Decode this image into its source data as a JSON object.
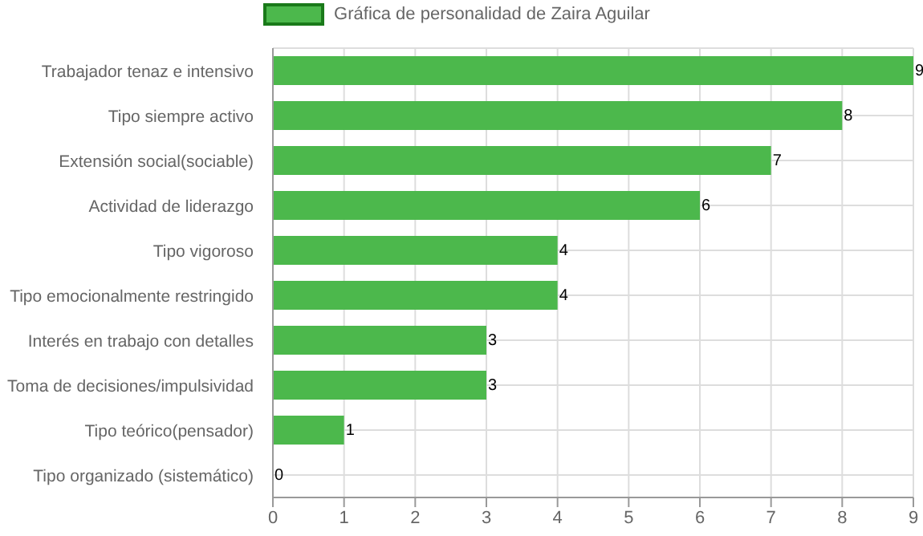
{
  "chart_data": {
    "type": "bar",
    "orientation": "horizontal",
    "categories": [
      "Trabajador tenaz e intensivo",
      "Tipo siempre activo",
      "Extensión social(sociable)",
      "Actividad de liderazgo",
      "Tipo vigoroso",
      "Tipo emocionalmente restringido",
      "Interés en trabajo con detalles",
      "Toma de decisiones/impulsividad",
      "Tipo teórico(pensador)",
      "Tipo organizado (sistemático)"
    ],
    "series": [
      {
        "name": "Gráfica de personalidad de Zaira Aguilar",
        "color": "#4cb84c",
        "values": [
          9,
          8,
          7,
          6,
          4,
          4,
          3,
          3,
          1,
          0
        ]
      }
    ],
    "xlim": [
      0,
      9
    ],
    "xticks": [
      0,
      1,
      2,
      3,
      4,
      5,
      6,
      7,
      8,
      9
    ],
    "grid": true,
    "legend": "top",
    "data_labels": true
  }
}
